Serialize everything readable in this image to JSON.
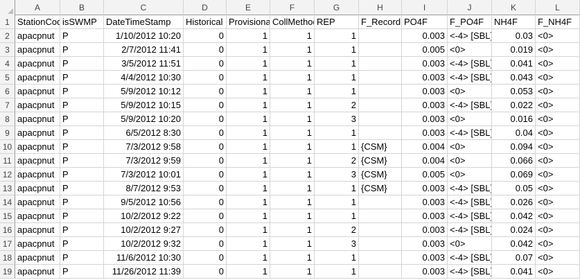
{
  "columns": [
    "A",
    "B",
    "C",
    "D",
    "E",
    "F",
    "G",
    "H",
    "I",
    "J",
    "K",
    "L"
  ],
  "row_numbers": [
    "1",
    "2",
    "3",
    "4",
    "5",
    "6",
    "7",
    "8",
    "9",
    "10",
    "11",
    "12",
    "13",
    "14",
    "15",
    "16",
    "17",
    "18",
    "19"
  ],
  "rows": [
    [
      "StationCode",
      "isSWMP",
      "DateTimeStamp",
      "Historical",
      "Provisional",
      "CollMethod",
      "REP",
      "F_Record",
      "PO4F",
      "F_PO4F",
      "NH4F",
      "F_NH4F"
    ],
    [
      "apacpnut",
      "P",
      "1/10/2012 10:20",
      "0",
      "1",
      "1",
      "1",
      "",
      "0.003",
      "<-4> [SBL]",
      "0.03",
      "<0>"
    ],
    [
      "apacpnut",
      "P",
      "2/7/2012 11:41",
      "0",
      "1",
      "1",
      "1",
      "",
      "0.005",
      "<0>",
      "0.019",
      "<0>"
    ],
    [
      "apacpnut",
      "P",
      "3/5/2012 11:51",
      "0",
      "1",
      "1",
      "1",
      "",
      "0.003",
      "<-4> [SBL]",
      "0.041",
      "<0>"
    ],
    [
      "apacpnut",
      "P",
      "4/4/2012 10:30",
      "0",
      "1",
      "1",
      "1",
      "",
      "0.003",
      "<-4> [SBL]",
      "0.043",
      "<0>"
    ],
    [
      "apacpnut",
      "P",
      "5/9/2012 10:12",
      "0",
      "1",
      "1",
      "1",
      "",
      "0.003",
      "<0>",
      "0.053",
      "<0>"
    ],
    [
      "apacpnut",
      "P",
      "5/9/2012 10:15",
      "0",
      "1",
      "1",
      "2",
      "",
      "0.003",
      "<-4> [SBL]",
      "0.022",
      "<0>"
    ],
    [
      "apacpnut",
      "P",
      "5/9/2012 10:20",
      "0",
      "1",
      "1",
      "3",
      "",
      "0.003",
      "<0>",
      "0.016",
      "<0>"
    ],
    [
      "apacpnut",
      "P",
      "6/5/2012 8:30",
      "0",
      "1",
      "1",
      "1",
      "",
      "0.003",
      "<-4> [SBL]",
      "0.04",
      "<0>"
    ],
    [
      "apacpnut",
      "P",
      "7/3/2012 9:58",
      "0",
      "1",
      "1",
      "1",
      "{CSM}",
      "0.004",
      "<0>",
      "0.094",
      "<0>"
    ],
    [
      "apacpnut",
      "P",
      "7/3/2012 9:59",
      "0",
      "1",
      "1",
      "2",
      "{CSM}",
      "0.004",
      "<0>",
      "0.066",
      "<0>"
    ],
    [
      "apacpnut",
      "P",
      "7/3/2012 10:01",
      "0",
      "1",
      "1",
      "3",
      "{CSM}",
      "0.005",
      "<0>",
      "0.069",
      "<0>"
    ],
    [
      "apacpnut",
      "P",
      "8/7/2012 9:53",
      "0",
      "1",
      "1",
      "1",
      "{CSM}",
      "0.003",
      "<-4> [SBL]",
      "0.05",
      "<0>"
    ],
    [
      "apacpnut",
      "P",
      "9/5/2012 10:56",
      "0",
      "1",
      "1",
      "1",
      "",
      "0.003",
      "<-4> [SBL]",
      "0.026",
      "<0>"
    ],
    [
      "apacpnut",
      "P",
      "10/2/2012 9:22",
      "0",
      "1",
      "1",
      "1",
      "",
      "0.003",
      "<-4> [SBL]",
      "0.042",
      "<0>"
    ],
    [
      "apacpnut",
      "P",
      "10/2/2012 9:27",
      "0",
      "1",
      "1",
      "2",
      "",
      "0.003",
      "<-4> [SBL]",
      "0.024",
      "<0>"
    ],
    [
      "apacpnut",
      "P",
      "10/2/2012 9:32",
      "0",
      "1",
      "1",
      "3",
      "",
      "0.003",
      "<0>",
      "0.042",
      "<0>"
    ],
    [
      "apacpnut",
      "P",
      "11/6/2012 10:30",
      "0",
      "1",
      "1",
      "1",
      "",
      "0.003",
      "<-4> [SBL]",
      "0.07",
      "<0>"
    ],
    [
      "apacpnut",
      "P",
      "11/26/2012 11:39",
      "0",
      "1",
      "1",
      "1",
      "",
      "0.003",
      "<-4> [SBL]",
      "0.041",
      "<0>"
    ]
  ],
  "colors": {
    "grid_line": "#d4d4d4",
    "header_bg": "#f3f3f3",
    "header_text": "#444444"
  }
}
